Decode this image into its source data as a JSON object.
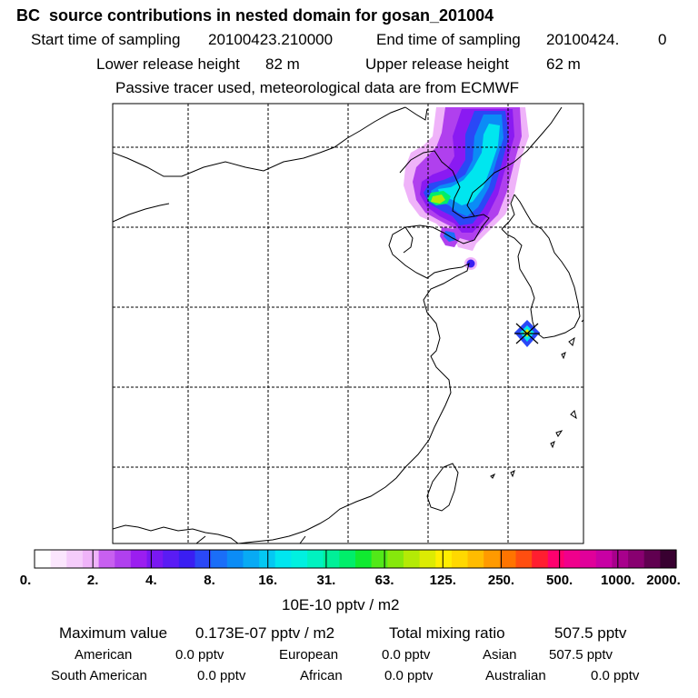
{
  "header": {
    "title": "BC  source contributions in nested domain for gosan_201004",
    "start_label": "Start time of sampling",
    "start_value": "20100423.210000",
    "end_label": "End time of sampling",
    "end_value": "20100424.",
    "end_extra": "0",
    "lower_label": "Lower release height",
    "lower_value": "82 m",
    "upper_label": "Upper release height",
    "upper_value": "62 m",
    "note": "Passive tracer used, meteorological data are from ECMWF"
  },
  "colorbar": {
    "unit": "10E-10 pptv / m2",
    "labels": [
      "0.",
      "2.",
      "4.",
      "8.",
      "16.",
      "31.",
      "63.",
      "125.",
      "250.",
      "500.",
      "1000.",
      "2000."
    ],
    "colors": [
      "#ffffff",
      "#fbe6fd",
      "#f5ccfb",
      "#efb3f9",
      "#c860f0",
      "#b040ee",
      "#9b1ef0",
      "#7a18f2",
      "#5a1cf4",
      "#3a1ef2",
      "#2a48f6",
      "#1a6ef8",
      "#0b8cf6",
      "#08aaf4",
      "#04c8f2",
      "#00e6ef",
      "#00f0e0",
      "#00f2c0",
      "#00f098",
      "#00ee6a",
      "#10ea30",
      "#52e818",
      "#86e80c",
      "#b4ea06",
      "#dceb03",
      "#ffee00",
      "#ffd800",
      "#ffbc00",
      "#ff9a00",
      "#ff7400",
      "#ff4e10",
      "#ff1e30",
      "#ff006e",
      "#f0008c",
      "#e0009a",
      "#c800a4",
      "#a8008c",
      "#880070",
      "#600050",
      "#380030"
    ]
  },
  "stats": {
    "max_label": "Maximum value",
    "max_value": "0.173E-07 pptv / m2",
    "total_label": "Total mixing ratio",
    "total_value": "507.5 pptv",
    "regions": [
      {
        "name": "American",
        "value": "0.0 pptv"
      },
      {
        "name": "European",
        "value": "0.0 pptv"
      },
      {
        "name": "Asian",
        "value": "507.5 pptv"
      },
      {
        "name": "South American",
        "value": "0.0 pptv"
      },
      {
        "name": "African",
        "value": "0.0 pptv"
      },
      {
        "name": "Australian",
        "value": "0.0 pptv"
      }
    ]
  },
  "map": {
    "marker_colors": [
      "#2a48f6",
      "#00e6ef",
      "#dceb03"
    ]
  }
}
